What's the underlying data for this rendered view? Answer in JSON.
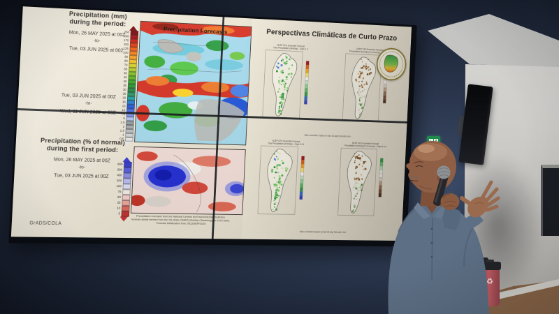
{
  "colors": {
    "wall_navy": "#273349",
    "screen_cream": "#f0ead9",
    "exit_green": "#1f8a4c",
    "bin_red": "#b05057",
    "bin_gray": "#6b6e71",
    "floor_wood": "#8a674a"
  },
  "icons": {
    "recycle": "♻"
  },
  "screen": {
    "left_slide": {
      "map_title": "Precipitation Forecasts",
      "credit": "GrADS/COLA",
      "period1": {
        "h1": "Precipitation (mm)",
        "h2": "during the period:",
        "from": "Mon, 26 MAY 2025 at 00Z",
        "sep": "-to-",
        "to": "Tue, 03 JUN 2025 at 00Z"
      },
      "period2": {
        "from": "Tue, 03 JUN 2025 at 00Z",
        "sep": "-to-",
        "to": "Wed, 11 JUN 2025 at 00Z"
      },
      "period3": {
        "h1": "Precipitation (% of normal)",
        "h2": "during the first period:",
        "from": "Mon, 26 MAY 2025 at 00Z",
        "sep": "-to-",
        "to": "Tue, 03 JUN 2025 at 00Z"
      },
      "caption": [
        "Precipitation forecasts from the National Centers for Environmental Prediction.",
        "Normal rainfall derived from the Xie-Arkin (CMAP) Monthly Climatology for 1979-2003.",
        "Forecast initialization time: 00Z26MAY2025"
      ],
      "colorbar_mm": {
        "labels": [
          "250",
          "200",
          "175",
          "150",
          "125",
          "100",
          "90",
          "80",
          "70",
          "60",
          "50",
          "45",
          "40",
          "35",
          "30",
          "25",
          "20",
          "16",
          "13",
          "10",
          "7.5",
          "5",
          "2.5",
          "2",
          "1.5",
          "1",
          "0.5"
        ],
        "colors": [
          "#7c0f12",
          "#a51317",
          "#c52318",
          "#df3f14",
          "#ef6016",
          "#f5821c",
          "#f9a224",
          "#f3c02a",
          "#d9d32e",
          "#b2cf2c",
          "#86c32a",
          "#5fb72a",
          "#3ea62c",
          "#2f9838",
          "#2a8a48",
          "#2b9a6a",
          "#23a3a0",
          "#2b7fd0",
          "#2b5ce0",
          "#4a6ee8",
          "#7e97ef",
          "#b4c6f4",
          "#989ea2",
          "#a9aeb1",
          "#bec3c5",
          "#d4d8d9",
          "#ebebea"
        ]
      },
      "colorbar_pct": {
        "labels": [
          "800",
          "600",
          "400",
          "200",
          "150",
          "75",
          "50",
          "25",
          "10",
          "5"
        ],
        "colors": [
          "#3a3ecf",
          "#5a60dd",
          "#8c90e8",
          "#babdf2",
          "#dcdef7",
          "#f4ece9",
          "#f3cfc8",
          "#eda79d",
          "#e0685e",
          "#c43434"
        ]
      }
    },
    "right_slide": {
      "title": "Perspectivas Climáticas de Curto Prazo",
      "footnote_row1": "Bias correction based on last 30-day forecast error",
      "footnote_row2": "Bias correction based on last 30-day forecast error",
      "palette_green": [
        "#2b9a3e",
        "#4db854",
        "#7ecb6a",
        "#a9dd8a",
        "#2b57c8",
        "#4a7ed8"
      ],
      "palette_brown": [
        "#8a5a2b",
        "#a06b38",
        "#b98a55",
        "#74502a",
        "#e4ddcf",
        "#5d9e48"
      ],
      "mini_scale_precip": [
        "#a51317",
        "#e65c12",
        "#f5a623",
        "#ffe066",
        "#f7f7f2",
        "#c5e8c8",
        "#8fd694",
        "#57bb61",
        "#2f9e44",
        "#2b6fd0",
        "#3440c0"
      ],
      "mini_scale_anom": [
        "#2f9e44",
        "#6fbf73",
        "#b7e0ba",
        "#e8f2e6",
        "#f7f3ec",
        "#e0d4c8",
        "#c2a189",
        "#9b6b4f",
        "#7a4a30",
        "#54301c"
      ],
      "panels": [
        {
          "header": "NCEP GFS Ensemble Forecast",
          "subheader": "Total Precipitation (mm/day) – Days 1–7",
          "type": "green"
        },
        {
          "header": "NCEP GFS Ensemble Forecast",
          "subheader": "Precipitation Anomaly (% of normal) – Days 1–7",
          "type": "brown"
        },
        {
          "header": "NCEP GFS Ensemble Forecast",
          "subheader": "Total Precipitation (mm/day) – Days 8–14",
          "type": "green"
        },
        {
          "header": "NCEP GFS Ensemble Forecast",
          "subheader": "Precipitation Anomaly (% of normal) – Days 8–14",
          "type": "brown"
        }
      ]
    }
  }
}
